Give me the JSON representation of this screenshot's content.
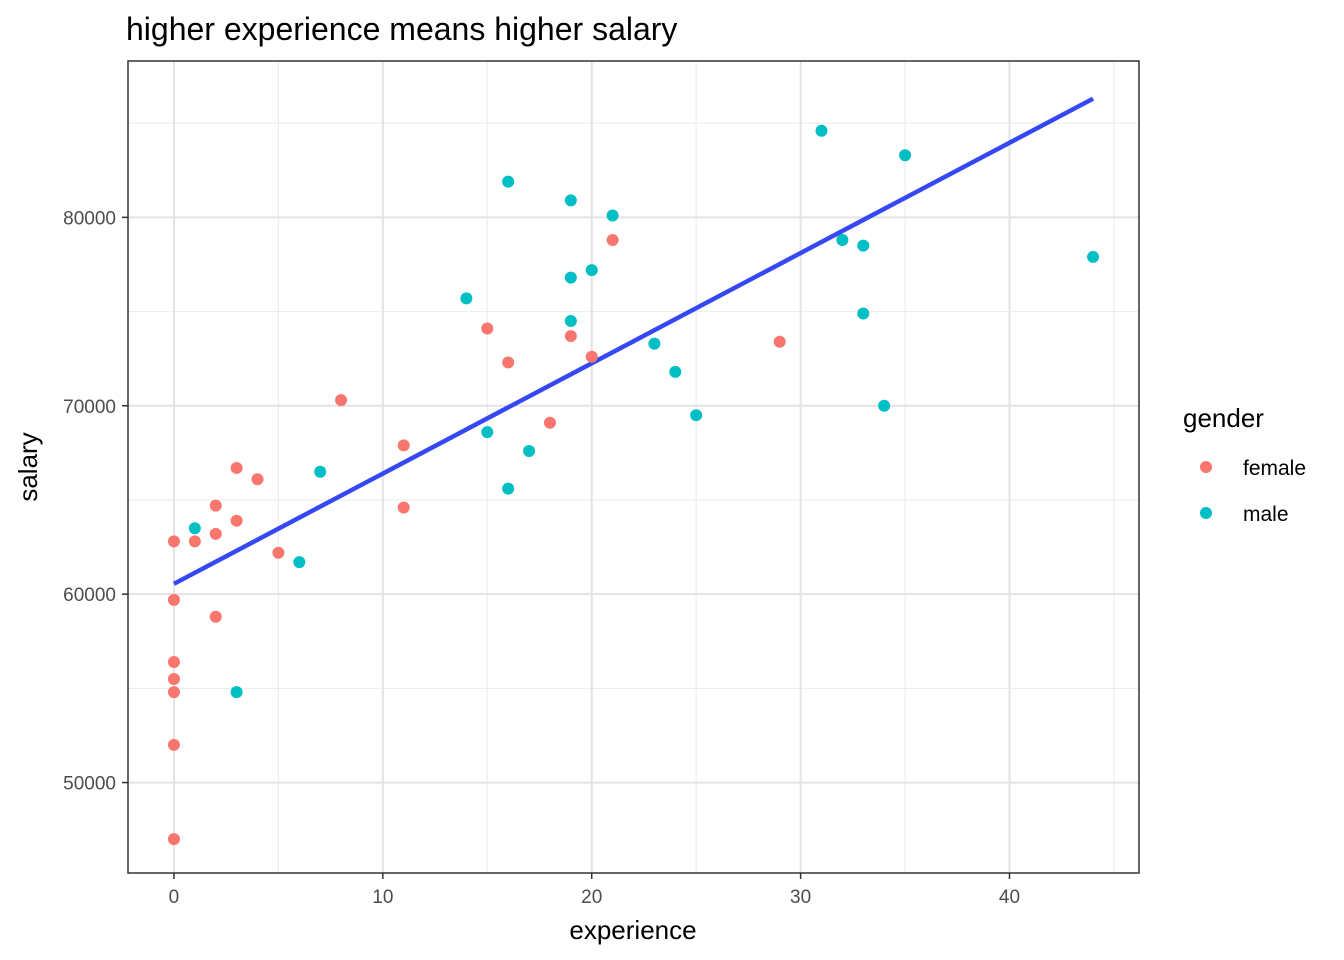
{
  "chart_data": {
    "type": "scatter",
    "title": "higher experience means higher salary",
    "xlabel": "experience",
    "ylabel": "salary",
    "xlim": [
      -2.2,
      46.2
    ],
    "ylim": [
      45200,
      88300
    ],
    "x_ticks": [
      0,
      10,
      20,
      30,
      40
    ],
    "x_tick_labels": [
      "0",
      "10",
      "20",
      "30",
      "40"
    ],
    "y_ticks": [
      50000,
      60000,
      70000,
      80000
    ],
    "y_tick_labels": [
      "50000",
      "60000",
      "70000",
      "80000"
    ],
    "grid": true,
    "legend": {
      "title": "gender",
      "position": "right",
      "entries": [
        {
          "label": "female",
          "color": "#F8766D"
        },
        {
          "label": "male",
          "color": "#00BFC4"
        }
      ]
    },
    "series": [
      {
        "name": "female",
        "color": "#F8766D",
        "points": [
          {
            "x": 0,
            "y": 47000
          },
          {
            "x": 0,
            "y": 52000
          },
          {
            "x": 0,
            "y": 54800
          },
          {
            "x": 0,
            "y": 55500
          },
          {
            "x": 0,
            "y": 56400
          },
          {
            "x": 0,
            "y": 59700
          },
          {
            "x": 0,
            "y": 62800
          },
          {
            "x": 1,
            "y": 62800
          },
          {
            "x": 2,
            "y": 58800
          },
          {
            "x": 2,
            "y": 63200
          },
          {
            "x": 2,
            "y": 64700
          },
          {
            "x": 3,
            "y": 63900
          },
          {
            "x": 3,
            "y": 66700
          },
          {
            "x": 4,
            "y": 66100
          },
          {
            "x": 5,
            "y": 62200
          },
          {
            "x": 8,
            "y": 70300
          },
          {
            "x": 11,
            "y": 64600
          },
          {
            "x": 11,
            "y": 67900
          },
          {
            "x": 15,
            "y": 74100
          },
          {
            "x": 16,
            "y": 72300
          },
          {
            "x": 18,
            "y": 69100
          },
          {
            "x": 19,
            "y": 73700
          },
          {
            "x": 20,
            "y": 72600
          },
          {
            "x": 21,
            "y": 78800
          },
          {
            "x": 29,
            "y": 73400
          }
        ]
      },
      {
        "name": "male",
        "color": "#00BFC4",
        "points": [
          {
            "x": 1,
            "y": 63500
          },
          {
            "x": 3,
            "y": 54800
          },
          {
            "x": 6,
            "y": 61700
          },
          {
            "x": 7,
            "y": 66500
          },
          {
            "x": 14,
            "y": 75700
          },
          {
            "x": 15,
            "y": 68600
          },
          {
            "x": 16,
            "y": 65600
          },
          {
            "x": 16,
            "y": 81900
          },
          {
            "x": 17,
            "y": 67600
          },
          {
            "x": 19,
            "y": 74500
          },
          {
            "x": 19,
            "y": 76800
          },
          {
            "x": 19,
            "y": 80900
          },
          {
            "x": 20,
            "y": 77200
          },
          {
            "x": 21,
            "y": 80100
          },
          {
            "x": 23,
            "y": 73300
          },
          {
            "x": 24,
            "y": 71800
          },
          {
            "x": 25,
            "y": 69500
          },
          {
            "x": 31,
            "y": 84600
          },
          {
            "x": 32,
            "y": 78800
          },
          {
            "x": 33,
            "y": 74900
          },
          {
            "x": 33,
            "y": 78500
          },
          {
            "x": 34,
            "y": 70000
          },
          {
            "x": 35,
            "y": 83300
          },
          {
            "x": 44,
            "y": 77900
          }
        ]
      }
    ],
    "trend_line": {
      "type": "linear",
      "color": "#3548F4",
      "points": [
        {
          "x": 0,
          "y": 60550
        },
        {
          "x": 44,
          "y": 86300
        }
      ]
    }
  }
}
